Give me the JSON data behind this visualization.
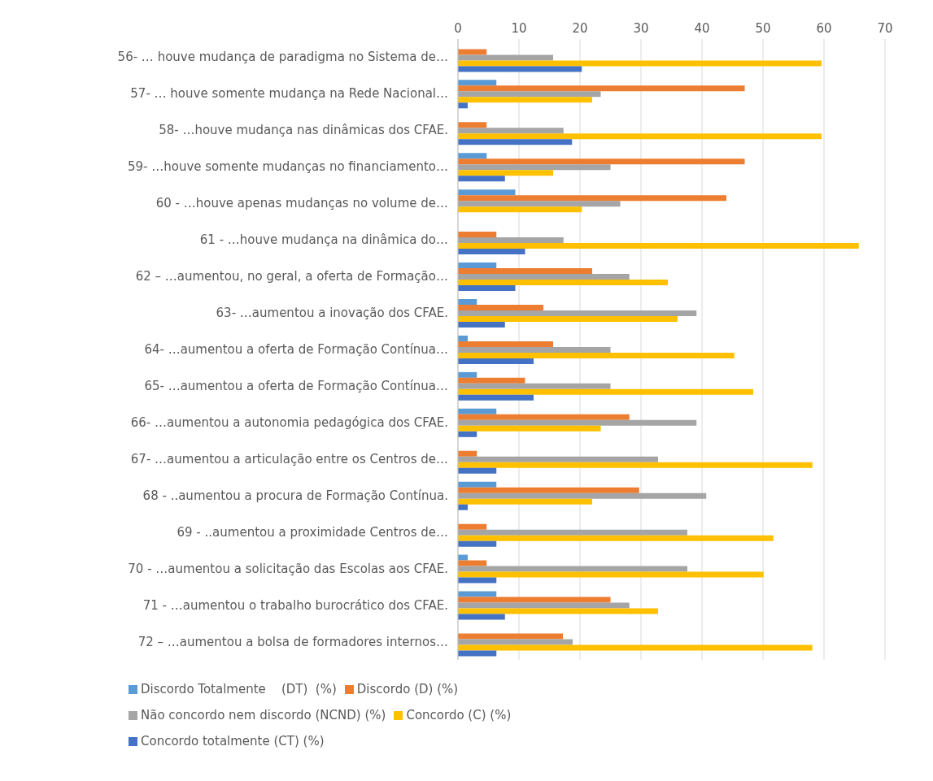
{
  "chart_data": {
    "type": "bar",
    "orientation": "horizontal",
    "categories": [
      "56- … houve mudança de paradigma no Sistema de…",
      "57- … houve somente mudança na Rede Nacional…",
      "58- …houve mudança nas dinâmicas dos CFAE.",
      "59- …houve somente mudanças no  financiamento…",
      "60 - …houve apenas  mudanças no volume de…",
      "61 - …houve mudança na dinâmica do…",
      "62 – …aumentou, no geral, a oferta de Formação…",
      "63- …aumentou a inovação dos CFAE.",
      "64- …aumentou a oferta de Formação Contínua…",
      "65- …aumentou a oferta de Formação Contínua…",
      "66- …aumentou a autonomia pedagógica dos CFAE.",
      "67- …aumentou a articulação entre os Centros de…",
      "68 - ..aumentou a procura de Formação Contínua.",
      "69 - ..aumentou a proximidade Centros de…",
      "70 - …aumentou a solicitação das Escolas aos CFAE.",
      "71 - …aumentou o trabalho burocrático dos CFAE.",
      "72 – …aumentou a bolsa de formadores internos…"
    ],
    "series": [
      {
        "name": "Discordo Totalmente    (DT)  (%)",
        "color": "#5b9bd5",
        "values": [
          0,
          6.3,
          0,
          4.7,
          9.4,
          0,
          6.3,
          3.1,
          1.6,
          3.1,
          6.3,
          0,
          6.3,
          0,
          1.6,
          6.3,
          0
        ]
      },
      {
        "name": "Discordo (D) (%)",
        "color": "#ed7d31",
        "values": [
          4.7,
          47.0,
          4.7,
          47.0,
          44.0,
          6.3,
          22.0,
          14.0,
          15.6,
          11.0,
          28.1,
          3.1,
          29.7,
          4.7,
          4.7,
          25.0,
          17.2
        ]
      },
      {
        "name": "Não concordo nem discordo (NCND) (%)",
        "color": "#a5a5a5",
        "values": [
          15.6,
          23.4,
          17.3,
          25.0,
          26.6,
          17.3,
          28.1,
          39.1,
          25.0,
          25.0,
          39.1,
          32.8,
          40.7,
          37.6,
          37.6,
          28.1,
          18.8
        ]
      },
      {
        "name": "Concordo (C) (%)",
        "color": "#ffc000",
        "values": [
          59.6,
          22.0,
          59.6,
          15.6,
          20.3,
          65.7,
          34.4,
          36.0,
          45.3,
          48.4,
          23.4,
          58.1,
          22.0,
          51.7,
          50.1,
          32.8,
          58.1
        ]
      },
      {
        "name": "Concordo totalmente (CT) (%)",
        "color": "#4472c4",
        "values": [
          20.3,
          1.6,
          18.7,
          7.7,
          0,
          11.0,
          9.4,
          7.7,
          12.4,
          12.4,
          3.1,
          6.3,
          1.6,
          6.3,
          6.3,
          7.7,
          6.3
        ]
      }
    ],
    "xlim": [
      0,
      70
    ],
    "xticks": [
      0,
      10,
      20,
      30,
      40,
      50,
      60,
      70
    ],
    "grid": "x",
    "legend": "bottom"
  }
}
